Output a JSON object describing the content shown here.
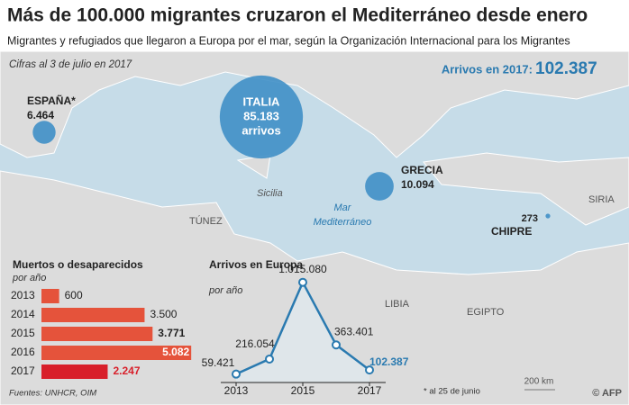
{
  "header": {
    "title": "Más de 100.000 migrantes cruzaron el Mediterráneo desde enero",
    "subtitle": "Migrantes y refugiados que llegaron a Europa por el mar, según la Organización Internacional para los Migrantes",
    "date_note": "Cifras al 3 de julio en 2017",
    "total_label": "Arrivos en 2017:",
    "total_value": "102.387"
  },
  "map": {
    "bubbles": [
      {
        "name": "ITALIA",
        "value": 85183,
        "value_label": "85.183",
        "unit": "arrivos",
        "color": "#3f8fc6"
      },
      {
        "name": "ESPAÑA*",
        "value": 6464,
        "value_label": "6.464",
        "color": "#3f8fc6"
      },
      {
        "name": "GRECIA",
        "value": 10094,
        "value_label": "10.094",
        "color": "#3f8fc6"
      },
      {
        "name": "CHIPRE",
        "value": 273,
        "value_label": "273",
        "color": "#3f8fc6"
      }
    ],
    "places": [
      "Sicilia",
      "TÚNEZ",
      "Mar",
      "Mediterráneo",
      "LIBIA",
      "EGIPTO",
      "SIRIA"
    ],
    "scale": "200 km"
  },
  "chart_data": [
    {
      "type": "bar",
      "title": "Muertos o desaparecidos",
      "subtitle": "por año",
      "categories": [
        "2013",
        "2014",
        "2015",
        "2016",
        "2017"
      ],
      "values": [
        600,
        3500,
        3771,
        5082,
        2247
      ],
      "value_labels": [
        "600",
        "3.500",
        "3.771",
        "5.082",
        "2.247"
      ],
      "colors": [
        "#e5533b",
        "#e5533b",
        "#e5533b",
        "#e5533b",
        "#d81f2a"
      ]
    },
    {
      "type": "line",
      "title": "Arrivos en Europa",
      "subtitle": "por año",
      "x": [
        2013,
        2014,
        2015,
        2016,
        2017
      ],
      "values": [
        59421,
        216054,
        1015080,
        363401,
        102387
      ],
      "value_labels": [
        "59.421",
        "216.054",
        "1.015.080",
        "363.401",
        "102.387"
      ],
      "color": "#2a7ab0",
      "xticks": [
        2013,
        2015,
        2017
      ],
      "footnote": "* al 25 de junio"
    }
  ],
  "footer": {
    "sources": "Fuentes: UNHCR, OIM",
    "credit": "© AFP"
  }
}
